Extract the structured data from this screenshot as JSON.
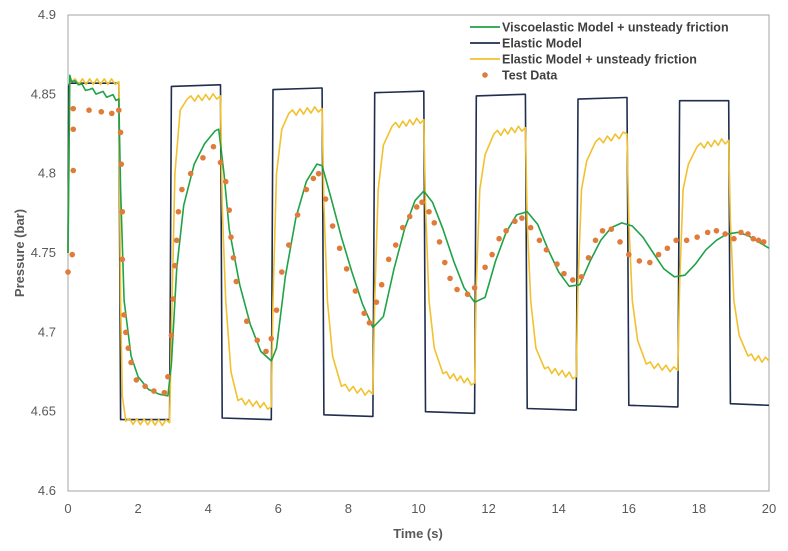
{
  "chart_data": {
    "type": "line",
    "title": "",
    "xlabel": "Time (s)",
    "ylabel": "Pressure (bar)",
    "xlim": [
      0,
      20
    ],
    "ylim": [
      4.6,
      4.9
    ],
    "xticks": [
      "0",
      "2",
      "4",
      "6",
      "8",
      "10",
      "12",
      "14",
      "16",
      "18",
      "20"
    ],
    "yticks": [
      "4.6",
      "4.65",
      "4.7",
      "4.75",
      "4.8",
      "4.85",
      "4.9"
    ],
    "grid": false,
    "legend_position": "top-right",
    "series": [
      {
        "name": "Viscoelastic Model + unsteady friction",
        "kind": "line",
        "color": "#1FA347",
        "x": [
          0,
          0.05,
          0.1,
          0.3,
          0.6,
          0.9,
          1.2,
          1.45,
          1.5,
          1.6,
          1.8,
          2.0,
          2.3,
          2.6,
          2.85,
          2.95,
          3.1,
          3.3,
          3.6,
          3.9,
          4.2,
          4.3,
          4.45,
          4.6,
          4.9,
          5.2,
          5.5,
          5.8,
          5.95,
          6.2,
          6.5,
          6.8,
          7.1,
          7.25,
          7.5,
          7.8,
          8.1,
          8.4,
          8.7,
          9.0,
          9.3,
          9.6,
          9.9,
          10.15,
          10.4,
          10.7,
          11.0,
          11.3,
          11.6,
          11.9,
          12.2,
          12.5,
          12.8,
          13.1,
          13.4,
          13.7,
          14.0,
          14.3,
          14.6,
          14.9,
          15.2,
          15.5,
          15.8,
          16.1,
          16.4,
          16.7,
          17.0,
          17.3,
          17.6,
          17.9,
          18.2,
          18.5,
          18.8,
          19.1,
          19.4,
          19.7,
          20.0
        ],
        "values": [
          4.75,
          4.862,
          4.858,
          4.856,
          4.853,
          4.851,
          4.849,
          4.847,
          4.79,
          4.72,
          4.685,
          4.672,
          4.664,
          4.661,
          4.66,
          4.68,
          4.74,
          4.78,
          4.806,
          4.819,
          4.827,
          4.828,
          4.8,
          4.765,
          4.73,
          4.705,
          4.688,
          4.682,
          4.69,
          4.735,
          4.772,
          4.795,
          4.806,
          4.805,
          4.785,
          4.76,
          4.738,
          4.718,
          4.703,
          4.71,
          4.74,
          4.765,
          4.783,
          4.789,
          4.782,
          4.765,
          4.745,
          4.728,
          4.719,
          4.722,
          4.745,
          4.763,
          4.774,
          4.776,
          4.768,
          4.752,
          4.738,
          4.729,
          4.73,
          4.745,
          4.758,
          4.766,
          4.769,
          4.767,
          4.76,
          4.75,
          4.74,
          4.735,
          4.736,
          4.743,
          4.752,
          4.758,
          4.762,
          4.763,
          4.761,
          4.757,
          4.753
        ]
      },
      {
        "name": "Elastic Model",
        "kind": "line",
        "color": "#1F2D4E",
        "x": [
          0,
          0.02,
          0.05,
          1.42,
          1.45,
          1.5,
          2.87,
          2.9,
          2.95,
          4.32,
          4.35,
          4.4,
          5.77,
          5.8,
          5.85,
          7.22,
          7.25,
          7.3,
          8.67,
          8.7,
          8.75,
          10.12,
          10.15,
          10.2,
          11.57,
          11.6,
          11.65,
          13.02,
          13.05,
          13.1,
          14.47,
          14.5,
          14.55,
          15.92,
          15.95,
          16.0,
          17.37,
          17.4,
          17.45,
          18.82,
          18.85,
          18.9,
          20.0
        ],
        "values": [
          4.75,
          4.855,
          4.857,
          4.857,
          4.857,
          4.645,
          4.645,
          4.645,
          4.855,
          4.856,
          4.856,
          4.646,
          4.645,
          4.645,
          4.853,
          4.854,
          4.854,
          4.648,
          4.647,
          4.647,
          4.851,
          4.852,
          4.852,
          4.65,
          4.649,
          4.649,
          4.849,
          4.85,
          4.85,
          4.652,
          4.651,
          4.651,
          4.847,
          4.848,
          4.848,
          4.654,
          4.653,
          4.653,
          4.846,
          4.846,
          4.846,
          4.655,
          4.654
        ]
      },
      {
        "name": "Elastic Model + unsteady friction",
        "kind": "line",
        "color": "#F2C12E",
        "x": [
          0,
          0.05,
          0.1,
          1.45,
          1.5,
          1.55,
          1.65,
          2.9,
          2.95,
          3.05,
          3.2,
          3.4,
          4.35,
          4.4,
          4.5,
          4.65,
          4.85,
          5.8,
          5.85,
          5.95,
          6.1,
          6.3,
          7.25,
          7.3,
          7.4,
          7.55,
          7.8,
          8.7,
          8.75,
          8.85,
          9.0,
          9.25,
          10.15,
          10.2,
          10.3,
          10.45,
          10.7,
          11.6,
          11.65,
          11.75,
          11.9,
          12.15,
          13.05,
          13.1,
          13.2,
          13.35,
          13.6,
          14.5,
          14.55,
          14.65,
          14.8,
          15.05,
          15.95,
          16.0,
          16.1,
          16.25,
          16.5,
          17.4,
          17.45,
          17.55,
          17.7,
          17.95,
          18.85,
          18.9,
          19.0,
          19.15,
          19.4,
          20.0
        ],
        "values": [
          4.75,
          4.857,
          4.858,
          4.858,
          4.72,
          4.66,
          4.644,
          4.643,
          4.7,
          4.8,
          4.84,
          4.847,
          4.849,
          4.78,
          4.72,
          4.675,
          4.657,
          4.653,
          4.72,
          4.8,
          4.828,
          4.838,
          4.841,
          4.78,
          4.72,
          4.685,
          4.666,
          4.661,
          4.72,
          4.79,
          4.818,
          4.83,
          4.834,
          4.78,
          4.72,
          4.69,
          4.674,
          4.668,
          4.73,
          4.79,
          4.812,
          4.825,
          4.829,
          4.77,
          4.72,
          4.69,
          4.677,
          4.672,
          4.73,
          4.79,
          4.808,
          4.82,
          4.825,
          4.77,
          4.72,
          4.695,
          4.68,
          4.676,
          4.73,
          4.79,
          4.806,
          4.817,
          4.821,
          4.77,
          4.72,
          4.698,
          4.685,
          4.682
        ]
      },
      {
        "name": "Test Data",
        "kind": "scatter",
        "color": "#E07B39",
        "x": [
          0.0,
          0.12,
          0.15,
          0.15,
          0.15,
          0.6,
          0.95,
          1.25,
          1.45,
          1.5,
          1.52,
          1.55,
          1.55,
          1.6,
          1.65,
          1.72,
          1.8,
          1.95,
          2.2,
          2.45,
          2.75,
          2.85,
          2.95,
          3.0,
          3.05,
          3.1,
          3.15,
          3.25,
          3.5,
          3.85,
          4.15,
          4.35,
          4.5,
          4.6,
          4.65,
          4.72,
          4.8,
          5.1,
          5.4,
          5.65,
          5.8,
          5.95,
          6.1,
          6.3,
          6.55,
          6.8,
          7.0,
          7.15,
          7.35,
          7.55,
          7.75,
          7.95,
          8.2,
          8.45,
          8.6,
          8.8,
          8.95,
          9.15,
          9.35,
          9.55,
          9.75,
          9.95,
          10.1,
          10.3,
          10.45,
          10.6,
          10.75,
          10.9,
          11.1,
          11.4,
          11.6,
          11.9,
          12.1,
          12.3,
          12.5,
          12.75,
          12.95,
          13.2,
          13.45,
          13.65,
          13.95,
          14.15,
          14.4,
          14.65,
          14.85,
          15.05,
          15.25,
          15.5,
          15.75,
          16.0,
          16.3,
          16.6,
          16.85,
          17.1,
          17.35,
          17.65,
          17.95,
          18.25,
          18.5,
          18.75,
          19.0,
          19.2,
          19.4,
          19.55,
          19.7,
          19.85
        ],
        "values": [
          4.738,
          4.749,
          4.802,
          4.828,
          4.841,
          4.84,
          4.839,
          4.838,
          4.84,
          4.826,
          4.806,
          4.776,
          4.746,
          4.711,
          4.7,
          4.69,
          4.681,
          4.67,
          4.666,
          4.663,
          4.662,
          4.672,
          4.698,
          4.721,
          4.742,
          4.758,
          4.776,
          4.79,
          4.8,
          4.81,
          4.817,
          4.807,
          4.795,
          4.777,
          4.76,
          4.747,
          4.732,
          4.707,
          4.695,
          4.688,
          4.696,
          4.714,
          4.738,
          4.755,
          4.774,
          4.79,
          4.797,
          4.8,
          4.784,
          4.767,
          4.753,
          4.74,
          4.726,
          4.712,
          4.706,
          4.719,
          4.73,
          4.746,
          4.755,
          4.766,
          4.773,
          4.779,
          4.782,
          4.776,
          4.769,
          4.757,
          4.744,
          4.734,
          4.727,
          4.724,
          4.728,
          4.741,
          4.749,
          4.759,
          4.764,
          4.77,
          4.772,
          4.766,
          4.758,
          4.752,
          4.743,
          4.737,
          4.733,
          4.735,
          4.747,
          4.758,
          4.764,
          4.765,
          4.757,
          4.749,
          4.745,
          4.744,
          4.749,
          4.753,
          4.758,
          4.758,
          4.76,
          4.763,
          4.764,
          4.762,
          4.759,
          4.763,
          4.762,
          4.759,
          4.758,
          4.757
        ]
      }
    ]
  }
}
